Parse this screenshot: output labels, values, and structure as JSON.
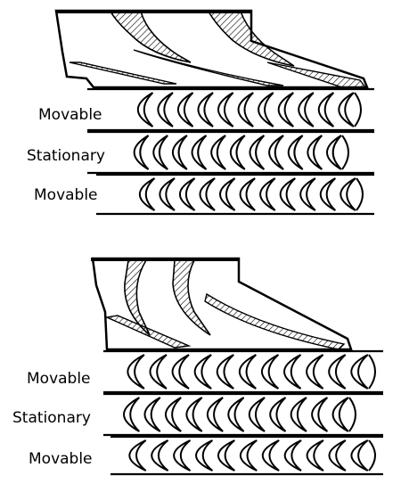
{
  "figure": {
    "top": {
      "labels": {
        "movable_1": "Movable",
        "stationary": "Stationary",
        "movable_2": "Movable"
      },
      "rows": [
        {
          "name": "movable",
          "blade_count": 11
        },
        {
          "name": "stationary",
          "blade_count": 11
        },
        {
          "name": "movable",
          "blade_count": 11
        }
      ]
    },
    "bottom": {
      "labels": {
        "movable_1": "Movable",
        "stationary": "Stationary",
        "movable_2": "Movable"
      },
      "rows": [
        {
          "name": "movable",
          "blade_count": 11
        },
        {
          "name": "stationary",
          "blade_count": 11
        },
        {
          "name": "movable",
          "blade_count": 11
        }
      ]
    },
    "colors": {
      "ink": "#000000",
      "paper": "#ffffff"
    }
  }
}
